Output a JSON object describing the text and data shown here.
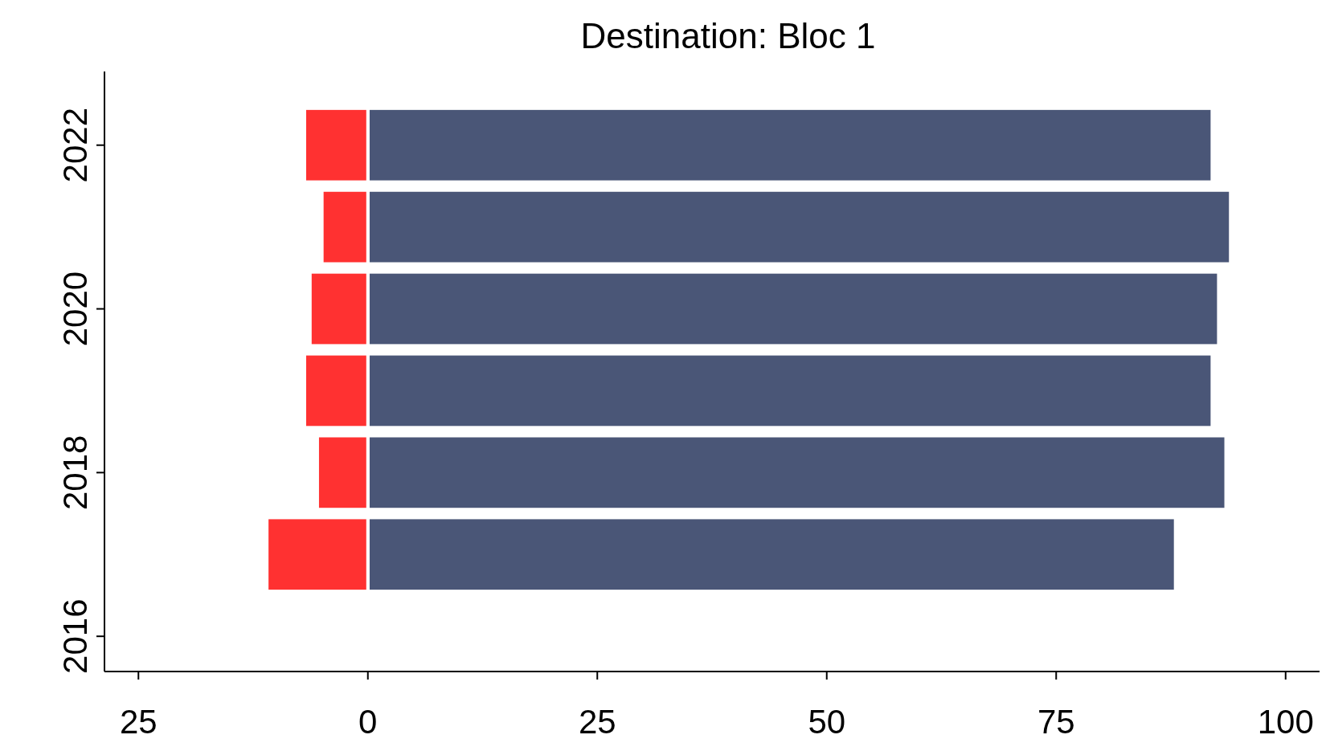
{
  "chart_data": {
    "type": "bar",
    "title": "Destination: Bloc 1",
    "orientation": "horizontal",
    "x": [
      2017,
      2018,
      2019,
      2020,
      2021,
      2022
    ],
    "series": [
      {
        "color": "#4a5677",
        "values": [
          88,
          93.5,
          92,
          92.7,
          94,
          92
        ]
      },
      {
        "color": "#ff3131",
        "values": [
          -11,
          -5.5,
          -6.9,
          -6.3,
          -5,
          -6.9
        ]
      }
    ],
    "xlim": [
      -28.7,
      103.7
    ],
    "xticks": [
      {
        "value": -25,
        "label": "25"
      },
      0,
      25,
      50,
      75,
      100
    ],
    "ylim": [
      2015.57,
      2022.9
    ],
    "yticks": [
      2016,
      2018,
      2020,
      2022
    ],
    "grid": false,
    "stacked": true
  }
}
